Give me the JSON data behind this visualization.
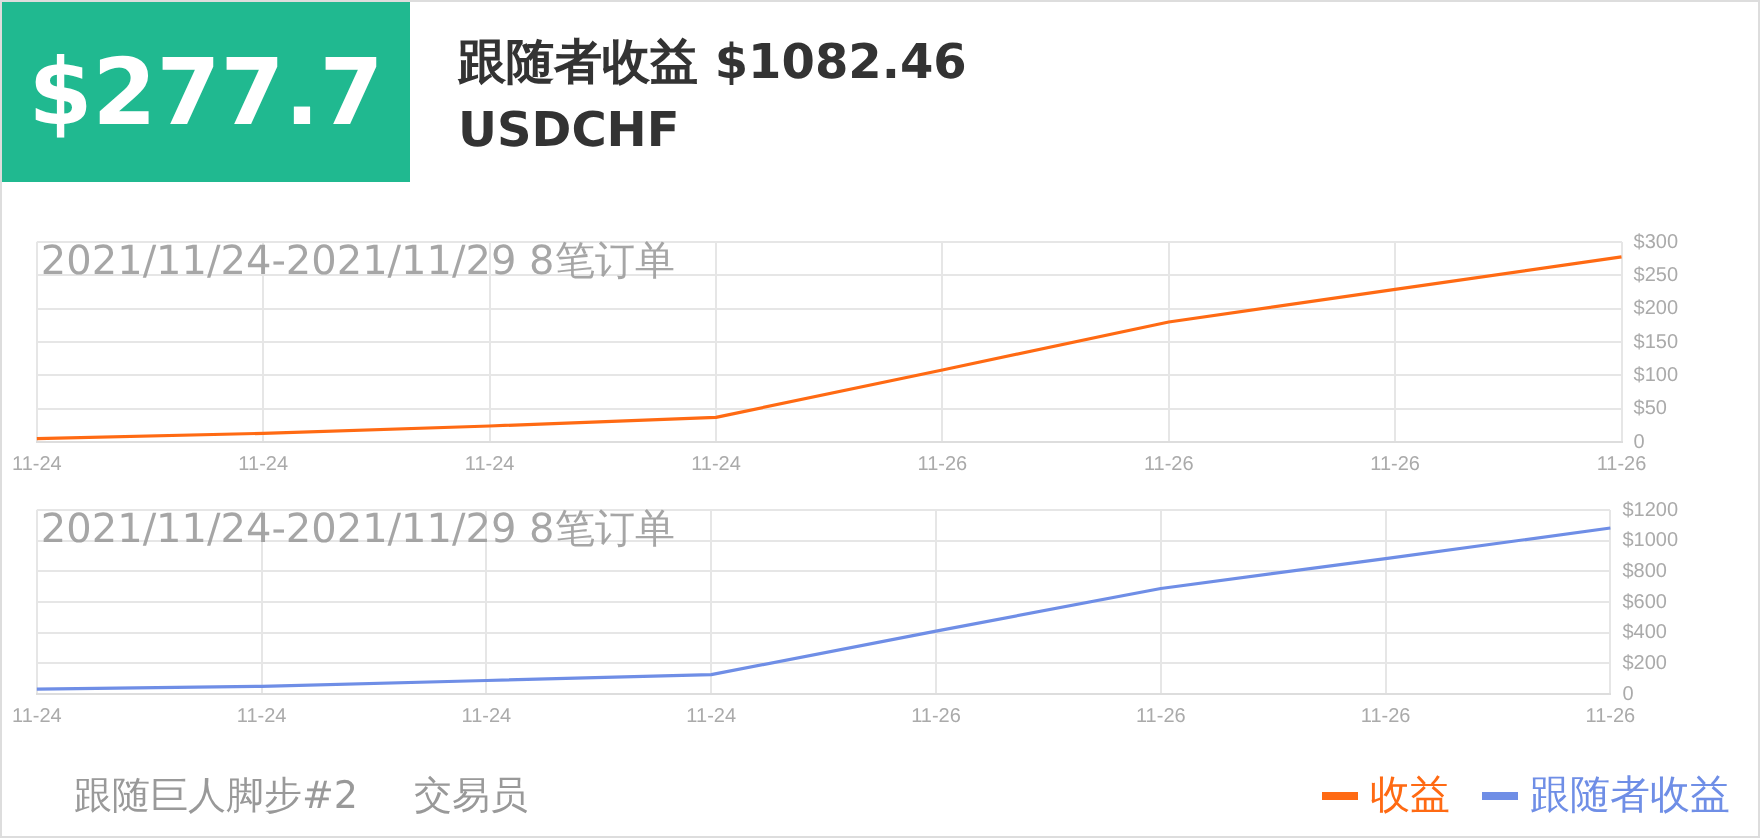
{
  "chart_data": [
    {
      "type": "line",
      "title": "2021/11/24-2021/11/29 8笔订单",
      "annotations": [
        "$277.7",
        "跟随者收益 $1082.46",
        "USDCHF",
        "跟随巨人脚步#2",
        "交易员"
      ],
      "categories": [
        "11-24",
        "11-24",
        "11-24",
        "11-24",
        "11-26",
        "11-26",
        "11-26",
        "11-26"
      ],
      "series": [
        {
          "name": "收益",
          "color": "#ff6a13",
          "values": [
            5,
            13,
            24,
            37,
            108,
            180,
            229,
            277.7
          ]
        }
      ],
      "ylim": [
        0,
        300
      ],
      "yticks": [
        0,
        {
          "value": 50,
          "label": "$50"
        },
        {
          "value": 100,
          "label": "$100"
        },
        {
          "value": 150,
          "label": "$150"
        },
        {
          "value": 200,
          "label": "$200"
        },
        {
          "value": 250,
          "label": "$250"
        },
        {
          "value": 300,
          "label": "$300"
        }
      ],
      "grid": true,
      "legend": "bottom right",
      "marker": "none"
    },
    {
      "type": "line",
      "title": "2021/11/24-2021/11/29 8笔订单",
      "categories": [
        "11-24",
        "11-24",
        "11-24",
        "11-24",
        "11-26",
        "11-26",
        "11-26",
        "11-26"
      ],
      "series": [
        {
          "name": "跟随者收益",
          "color": "#6f8ee6",
          "values": [
            32,
            50,
            88,
            126,
            410,
            688,
            883,
            1082.46
          ]
        }
      ],
      "ylim": [
        0,
        1200
      ],
      "yticks": [
        0,
        {
          "value": 200,
          "label": "$200"
        },
        {
          "value": 400,
          "label": "$400"
        },
        {
          "value": 600,
          "label": "$600"
        },
        {
          "value": 800,
          "label": "$800"
        },
        {
          "value": 1000,
          "label": "$1000"
        },
        {
          "value": 1200,
          "label": "$1200"
        }
      ],
      "grid": true,
      "legend": "bottom right",
      "marker": "none"
    }
  ]
}
